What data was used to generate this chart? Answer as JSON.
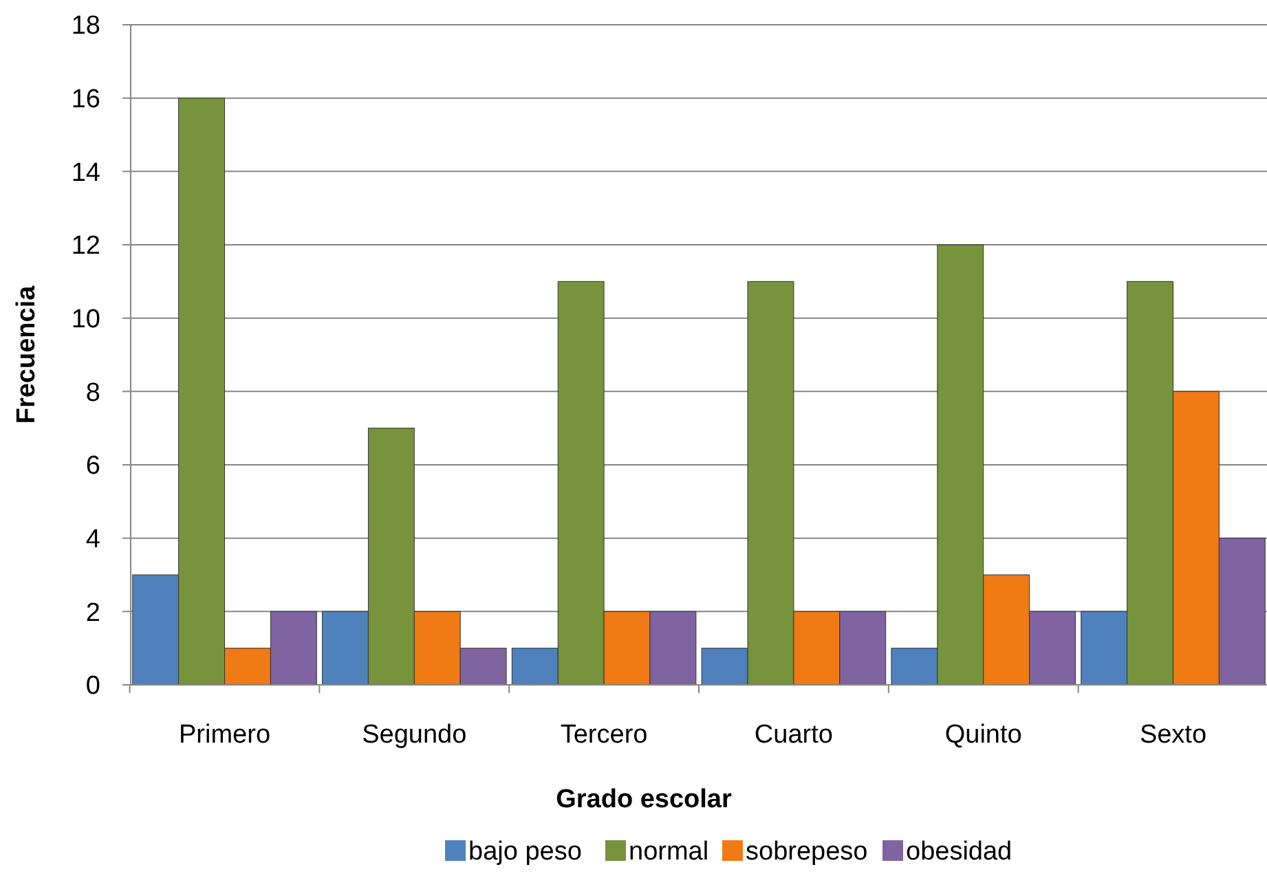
{
  "chart_data": {
    "type": "bar",
    "xlabel": "Grado escolar",
    "ylabel": "Frecuencia",
    "categories": [
      "Primero",
      "Segundo",
      "Tercero",
      "Cuarto",
      "Quinto",
      "Sexto"
    ],
    "series": [
      {
        "name": "bajo peso",
        "color": "#4f81bd",
        "values": [
          3,
          2,
          1,
          1,
          1,
          2
        ]
      },
      {
        "name": "normal",
        "color": "#77933c",
        "values": [
          16,
          7,
          11,
          11,
          12,
          11
        ]
      },
      {
        "name": "sobrepeso",
        "color": "#f07a14",
        "values": [
          1,
          2,
          2,
          2,
          3,
          8
        ]
      },
      {
        "name": "obesidad",
        "color": "#8064a2",
        "values": [
          2,
          1,
          2,
          2,
          2,
          4
        ]
      }
    ],
    "ylim": [
      0,
      18
    ],
    "yticks": [
      0,
      2,
      4,
      6,
      8,
      10,
      12,
      14,
      16,
      18
    ],
    "grid": "y",
    "legend": "bottom"
  }
}
